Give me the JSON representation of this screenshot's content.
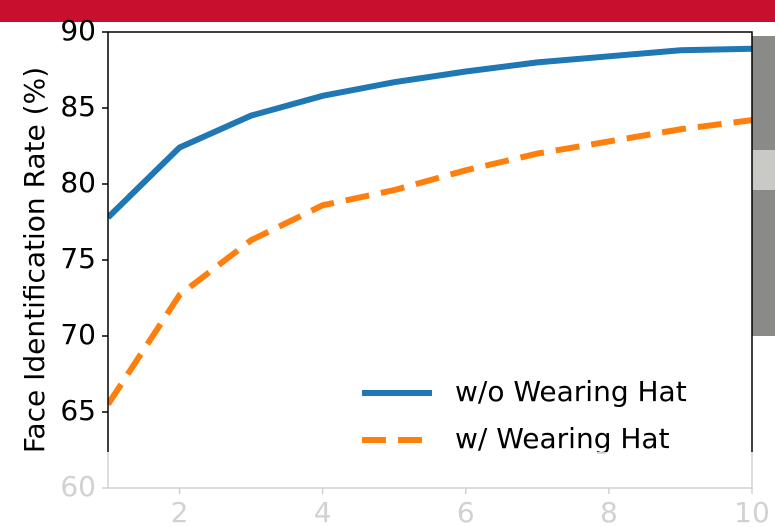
{
  "chart_data": {
    "type": "line",
    "x": [
      1,
      2,
      3,
      4,
      5,
      6,
      7,
      8,
      9,
      10
    ],
    "series": [
      {
        "name": "w/o Wearing Hat",
        "color": "#1f77b4",
        "dash": false,
        "values": [
          77.8,
          82.4,
          84.5,
          85.8,
          86.7,
          87.4,
          88.0,
          88.4,
          88.8,
          88.9
        ]
      },
      {
        "name": "w/ Wearing Hat",
        "color": "#ff7f0e",
        "dash": true,
        "values": [
          65.5,
          72.7,
          76.3,
          78.6,
          79.6,
          80.9,
          82.0,
          82.8,
          83.6,
          84.2
        ]
      }
    ],
    "ylabel": "Face Identification Rate (%)",
    "xlim": [
      1,
      10
    ],
    "xticks": [
      2,
      4,
      6,
      8,
      10
    ],
    "ylim": [
      60,
      90
    ],
    "yticks": [
      60,
      65,
      70,
      75,
      80,
      85,
      90
    ],
    "grid": false,
    "legend": "lower right"
  }
}
